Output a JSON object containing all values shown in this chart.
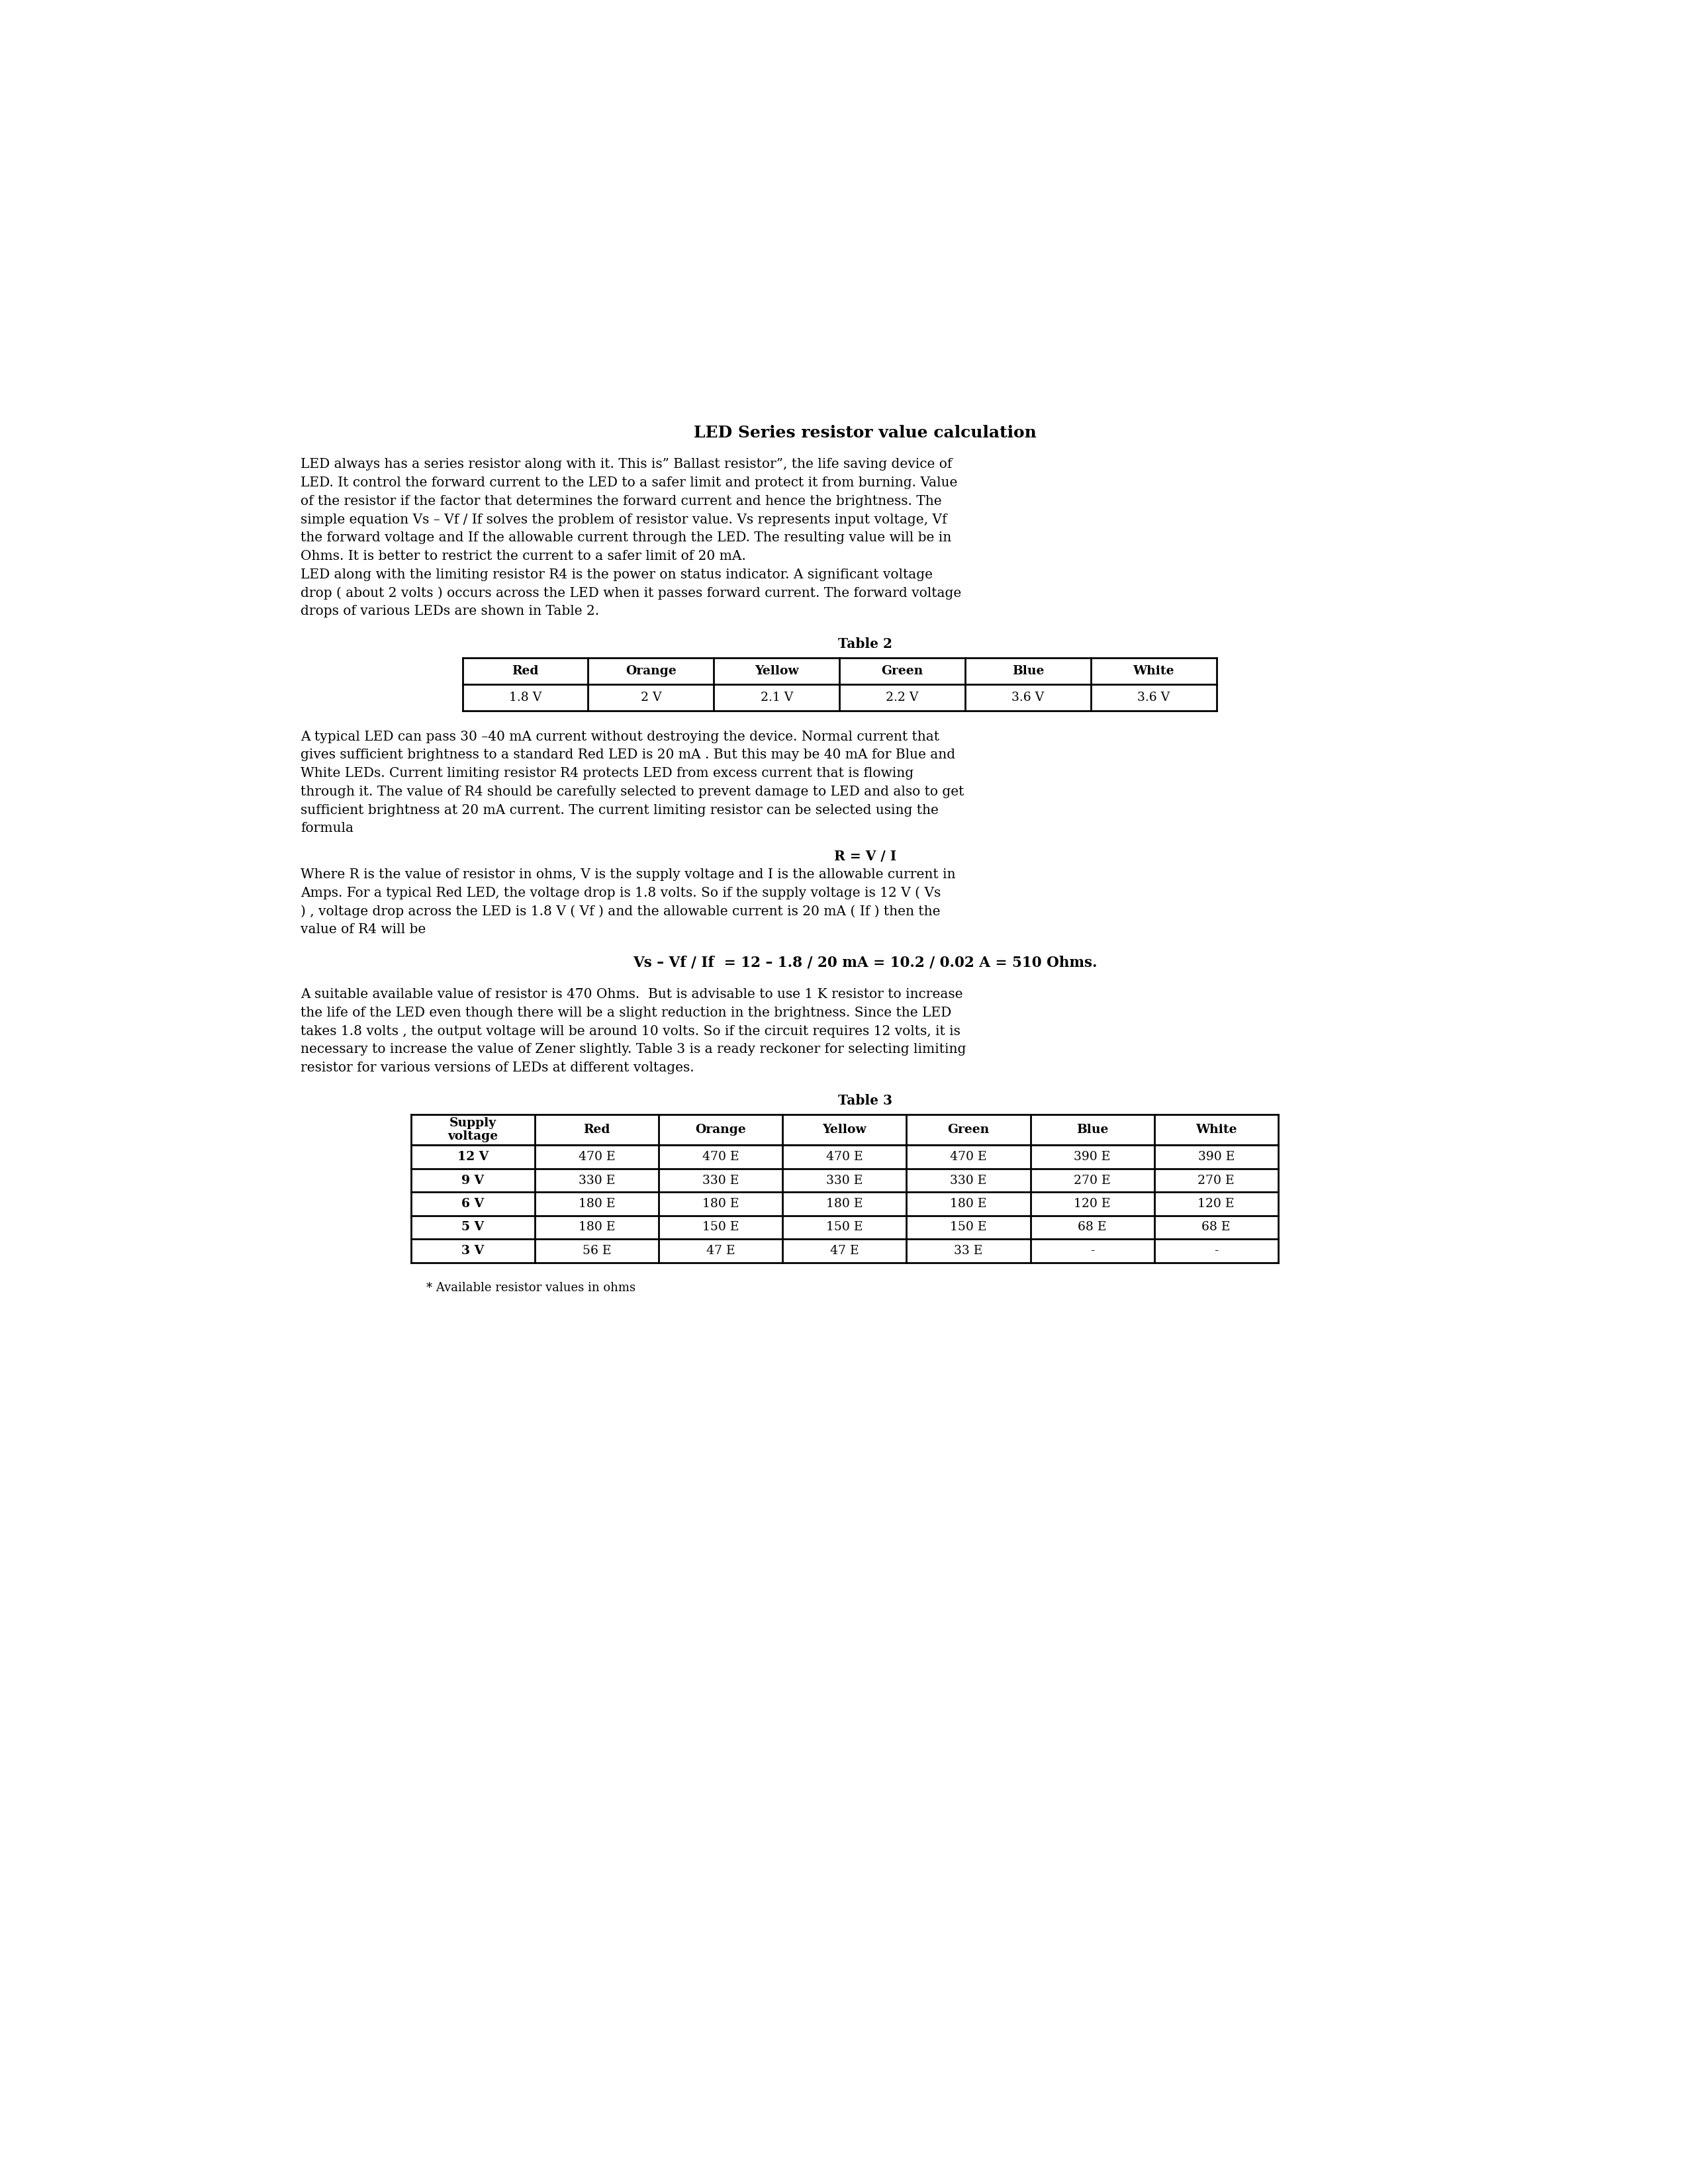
{
  "title": "LED Series resistor value calculation",
  "para1_line1": "LED always has a series resistor along with it. This is” Ballast resistor”, the life saving device of",
  "para1_line2": "LED. It control the forward current to the LED to a safer limit and protect it from burning. Value",
  "para1_line3": "of the resistor if the factor that determines the forward current and hence the brightness. The",
  "para1_line4": "simple equation Vs – Vf / If solves the problem of resistor value. Vs represents input voltage, Vf",
  "para1_line5": "the forward voltage and If the allowable current through the LED. The resulting value will be in",
  "para1_line6": "Ohms. It is better to restrict the current to a safer limit of 20 mA.",
  "para2_line1": "LED along with the limiting resistor R4 is the power on status indicator. A significant voltage",
  "para2_line2": "drop ( about 2 volts ) occurs across the LED when it passes forward current. The forward voltage",
  "para2_line3": "drops of various LEDs are shown in Table 2.",
  "table2_title": "Table 2",
  "table2_headers": [
    "Red",
    "Orange",
    "Yellow",
    "Green",
    "Blue",
    "White"
  ],
  "table2_values": [
    "1.8 V",
    "2 V",
    "2.1 V",
    "2.2 V",
    "3.6 V",
    "3.6 V"
  ],
  "para3_line1": "A typical LED can pass 30 –40 mA current without destroying the device. Normal current that",
  "para3_line2": "gives sufficient brightness to a standard Red LED is 20 mA . But this may be 40 mA for Blue and",
  "para3_line3": "White LEDs. Current limiting resistor R4 protects LED from excess current that is flowing",
  "para3_line4": "through it. The value of R4 should be carefully selected to prevent damage to LED and also to get",
  "para3_line5": "sufficient brightness at 20 mA current. The current limiting resistor can be selected using the",
  "para3_line6": "formula",
  "formula1": "R = V / I",
  "para4_line1": "Where R is the value of resistor in ohms, V is the supply voltage and I is the allowable current in",
  "para4_line2": "Amps. For a typical Red LED, the voltage drop is 1.8 volts. So if the supply voltage is 12 V ( Vs",
  "para4_line3": ") , voltage drop across the LED is 1.8 V ( Vf ) and the allowable current is 20 mA ( If ) then the",
  "para4_line4": "value of R4 will be",
  "formula2": "Vs – Vf / If  = 12 – 1.8 / 20 mA = 10.2 / 0.02 A = 510 Ohms.",
  "para5_line1": "A suitable available value of resistor is 470 Ohms.  But is advisable to use 1 K resistor to increase",
  "para5_line2": "the life of the LED even though there will be a slight reduction in the brightness. Since the LED",
  "para5_line3": "takes 1.8 volts , the output voltage will be around 10 volts. So if the circuit requires 12 volts, it is",
  "para5_line4": "necessary to increase the value of Zener slightly. Table 3 is a ready reckoner for selecting limiting",
  "para5_line5": "resistor for various versions of LEDs at different voltages.",
  "table3_title": "Table 3",
  "table3_headers": [
    "Supply\nvoltage",
    "Red",
    "Orange",
    "Yellow",
    "Green",
    "Blue",
    "White"
  ],
  "table3_rows": [
    [
      "12 V",
      "470 E",
      "470 E",
      "470 E",
      "470 E",
      "390 E",
      "390 E"
    ],
    [
      "9 V",
      "330 E",
      "330 E",
      "330 E",
      "330 E",
      "270 E",
      "270 E"
    ],
    [
      "6 V",
      "180 E",
      "180 E",
      "180 E",
      "180 E",
      "120 E",
      "120 E"
    ],
    [
      "5 V",
      "180 E",
      "150 E",
      "150 E",
      "150 E",
      "68 E",
      "68 E"
    ],
    [
      "3 V",
      "56 E",
      "47 E",
      "47 E",
      "33 E",
      "-",
      "-"
    ]
  ],
  "footnote": "* Available resistor values in ohms",
  "bg_color": "#ffffff",
  "font_size_title": 18,
  "font_size_body": 14.5,
  "font_size_table": 13.5,
  "font_size_footnote": 13
}
